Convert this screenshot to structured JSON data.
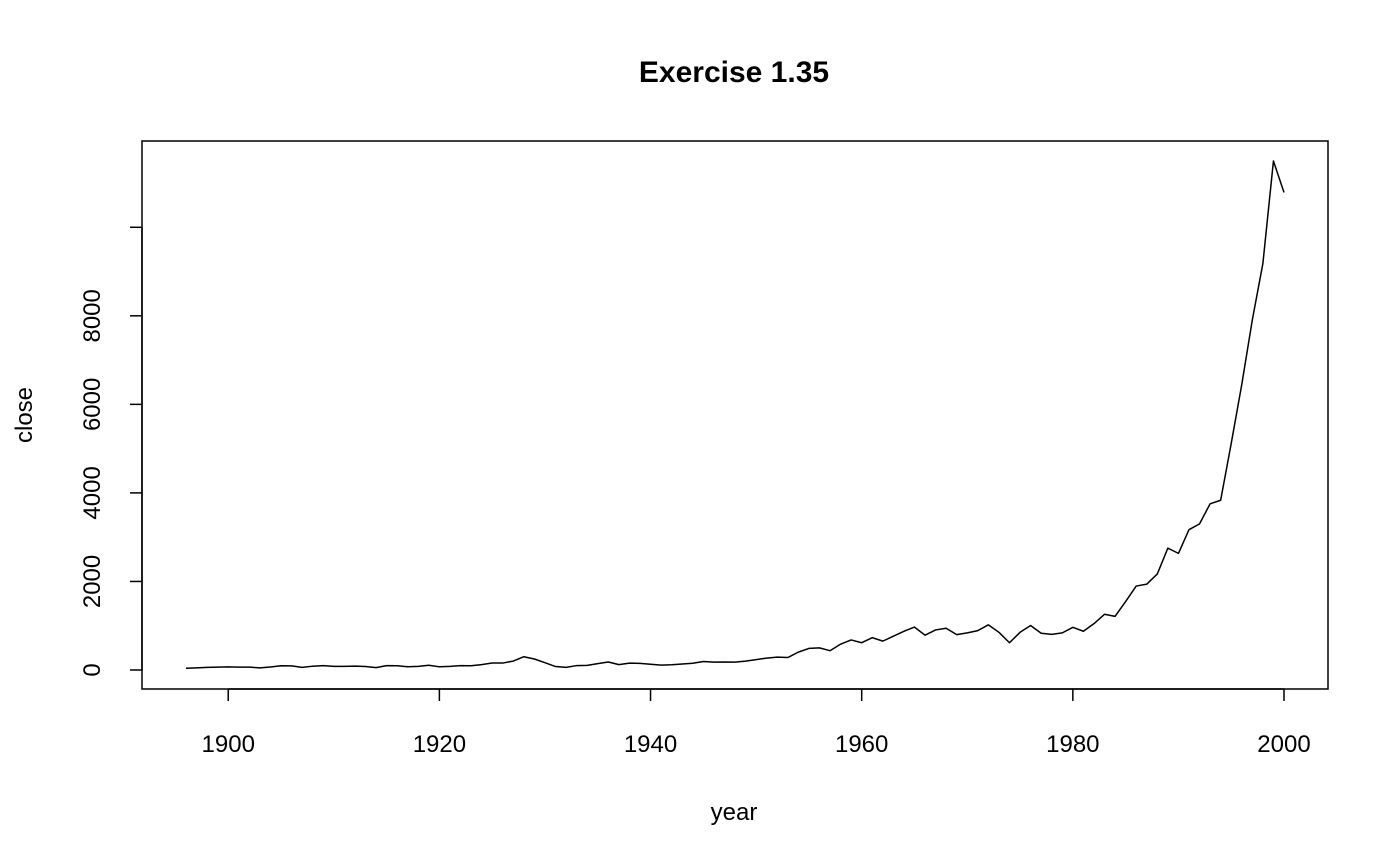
{
  "chart_data": {
    "type": "line",
    "title": "Exercise 1.35",
    "xlabel": "year",
    "ylabel": "close",
    "xlim": [
      1896,
      2000
    ],
    "ylim": [
      0,
      11497
    ],
    "x_ticks": [
      1900,
      1920,
      1940,
      1960,
      1980,
      2000
    ],
    "x_tick_labels": [
      "1900",
      "1920",
      "1940",
      "1960",
      "1980",
      "2000"
    ],
    "y_ticks": [
      0,
      2000,
      4000,
      6000,
      8000,
      10000
    ],
    "y_tick_labels": [
      "0",
      "2000",
      "4000",
      "6000",
      "8000",
      ""
    ],
    "grid": false,
    "legend": "none",
    "line_color": "#000000",
    "series": [
      {
        "x": [
          1896,
          1897,
          1898,
          1899,
          1900,
          1901,
          1902,
          1903,
          1904,
          1905,
          1906,
          1907,
          1908,
          1909,
          1910,
          1911,
          1912,
          1913,
          1914,
          1915,
          1916,
          1917,
          1918,
          1919,
          1920,
          1921,
          1922,
          1923,
          1924,
          1925,
          1926,
          1927,
          1928,
          1929,
          1930,
          1931,
          1932,
          1933,
          1934,
          1935,
          1936,
          1937,
          1938,
          1939,
          1940,
          1941,
          1942,
          1943,
          1944,
          1945,
          1946,
          1947,
          1948,
          1949,
          1950,
          1951,
          1952,
          1953,
          1954,
          1955,
          1956,
          1957,
          1958,
          1959,
          1960,
          1961,
          1962,
          1963,
          1964,
          1965,
          1966,
          1967,
          1968,
          1969,
          1970,
          1971,
          1972,
          1973,
          1974,
          1975,
          1976,
          1977,
          1978,
          1979,
          1980,
          1981,
          1982,
          1983,
          1984,
          1985,
          1986,
          1987,
          1988,
          1989,
          1990,
          1991,
          1992,
          1993,
          1994,
          1995,
          1996,
          1997,
          1998,
          1999,
          2000
        ],
        "values": [
          40,
          49,
          60,
          66,
          71,
          64,
          64,
          49,
          69,
          96,
          94,
          59,
          86,
          99,
          81,
          81,
          88,
          79,
          54,
          99,
          95,
          74,
          82,
          108,
          72,
          81,
          99,
          96,
          121,
          157,
          157,
          202,
          300,
          248,
          165,
          78,
          60,
          100,
          104,
          144,
          180,
          121,
          155,
          150,
          131,
          111,
          119,
          136,
          152,
          193,
          177,
          181,
          177,
          200,
          235,
          269,
          292,
          281,
          404,
          488,
          500,
          436,
          584,
          679,
          616,
          731,
          652,
          763,
          874,
          969,
          786,
          905,
          944,
          800,
          839,
          890,
          1020,
          851,
          616,
          852,
          1005,
          831,
          805,
          839,
          964,
          875,
          1047,
          1259,
          1212,
          1547,
          1896,
          1939,
          2169,
          2753,
          2634,
          3169,
          3301,
          3754,
          3834,
          5117,
          6448,
          7908,
          9181,
          11497,
          10787
        ]
      }
    ]
  }
}
